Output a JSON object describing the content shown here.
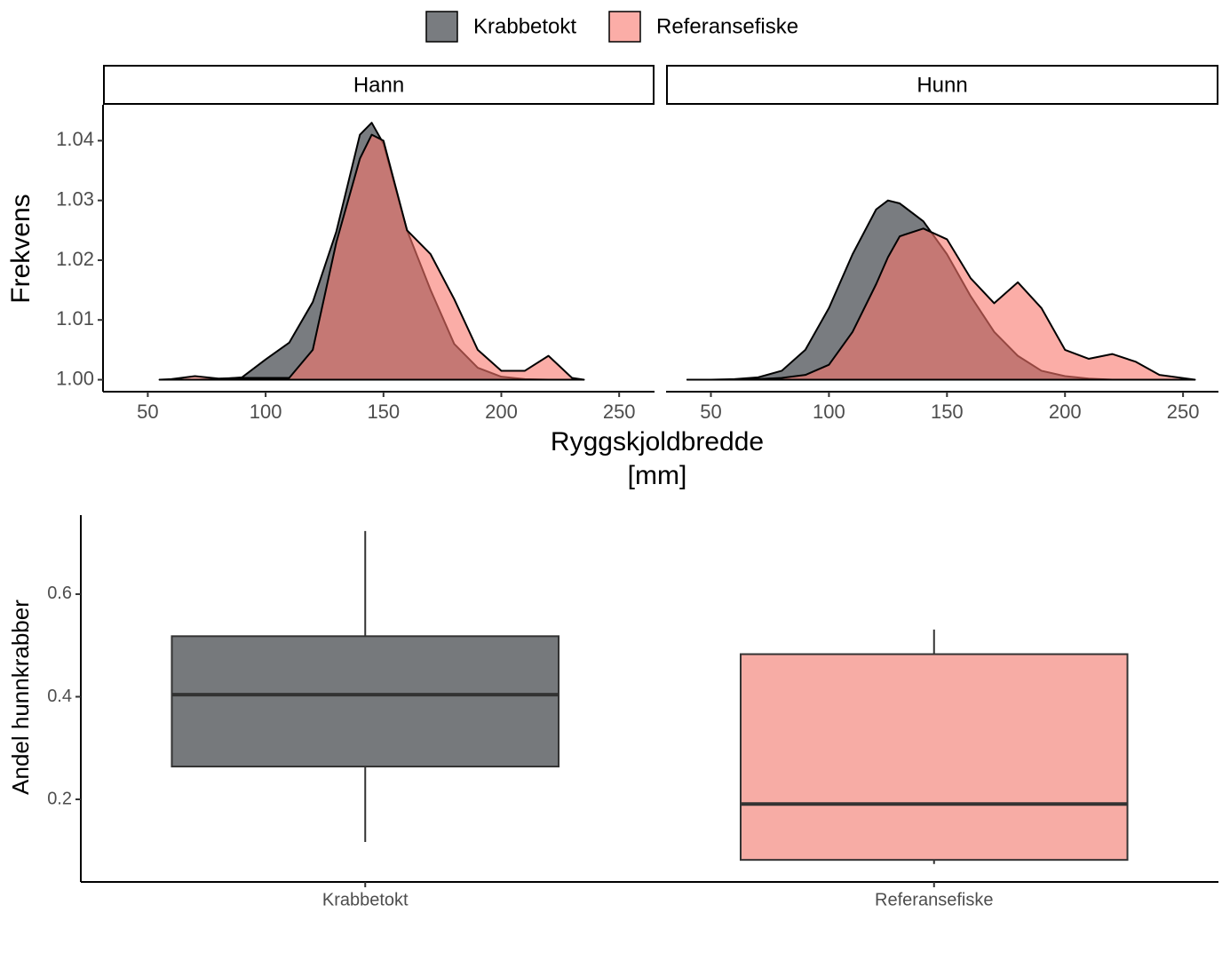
{
  "chart_data": [
    {
      "type": "density",
      "series": [
        {
          "name": "Krabbetokt",
          "color": "#575b60"
        },
        {
          "name": "Referansefiske",
          "color": "#f8766d"
        }
      ],
      "ylabel": "Frekvens",
      "xlabel": [
        "Ryggskjoldbredde",
        "[mm]"
      ],
      "xlim": [
        31,
        265
      ],
      "xticks": [
        50,
        100,
        150,
        200,
        250
      ],
      "ylim": [
        0.998,
        1.046
      ],
      "yticks": [
        {
          "value": 1,
          "label": "1.00"
        },
        1.01,
        1.02,
        1.03,
        1.04
      ],
      "facets": [
        {
          "title": "Hann",
          "x": [
            55,
            60,
            70,
            80,
            90,
            100,
            110,
            120,
            130,
            140,
            145,
            150,
            160,
            170,
            180,
            190,
            200,
            210,
            220,
            230,
            235
          ],
          "series": [
            {
              "values": [
                1.0,
                1.0,
                1.0,
                1.0001,
                1.0004,
                1.0034,
                1.0062,
                1.013,
                1.0248,
                1.041,
                1.043,
                1.0395,
                1.025,
                1.015,
                1.006,
                1.002,
                1.0005,
                1.0001,
                1.0,
                1.0,
                1.0
              ]
            },
            {
              "values": [
                1.0,
                1.0001,
                1.0006,
                1.0002,
                1.0003,
                1.0003,
                1.0003,
                1.005,
                1.023,
                1.037,
                1.041,
                1.04,
                1.025,
                1.021,
                1.0135,
                1.005,
                1.0015,
                1.0015,
                1.004,
                1.0003,
                1.0
              ]
            }
          ]
        },
        {
          "title": "Hunn",
          "x": [
            40,
            50,
            60,
            70,
            80,
            90,
            100,
            110,
            120,
            125,
            130,
            140,
            150,
            160,
            170,
            180,
            190,
            200,
            210,
            220,
            230,
            240,
            255
          ],
          "series": [
            {
              "values": [
                1.0,
                1.0,
                1.0001,
                1.0004,
                1.0015,
                1.005,
                1.012,
                1.021,
                1.0285,
                1.03,
                1.0295,
                1.0265,
                1.021,
                1.014,
                1.008,
                1.004,
                1.0015,
                1.0006,
                1.0002,
                1.0,
                1.0,
                1.0,
                1.0
              ]
            },
            {
              "values": [
                1.0,
                1.0,
                1.0,
                1.0001,
                1.0003,
                1.0008,
                1.0025,
                1.008,
                1.016,
                1.0205,
                1.024,
                1.0253,
                1.0235,
                1.017,
                1.0128,
                1.0163,
                1.012,
                1.005,
                1.0035,
                1.0043,
                1.003,
                1.0008,
                1.0
              ]
            }
          ]
        }
      ]
    },
    {
      "type": "box",
      "ylabel": "Andel hunnkrabber",
      "categories": [
        "Krabbetokt",
        "Referansefiske"
      ],
      "colors": [
        "#76797c",
        "#f7aca5"
      ],
      "boxes": [
        {
          "min": 0.117,
          "q1": 0.264,
          "median": 0.404,
          "q3": 0.518,
          "max": 0.723
        },
        {
          "min": 0.074,
          "q1": 0.082,
          "median": 0.191,
          "q3": 0.483,
          "max": 0.531
        }
      ],
      "ylim": [
        0.039,
        0.754
      ],
      "yticks": [
        0.2,
        0.4,
        0.6
      ]
    }
  ]
}
